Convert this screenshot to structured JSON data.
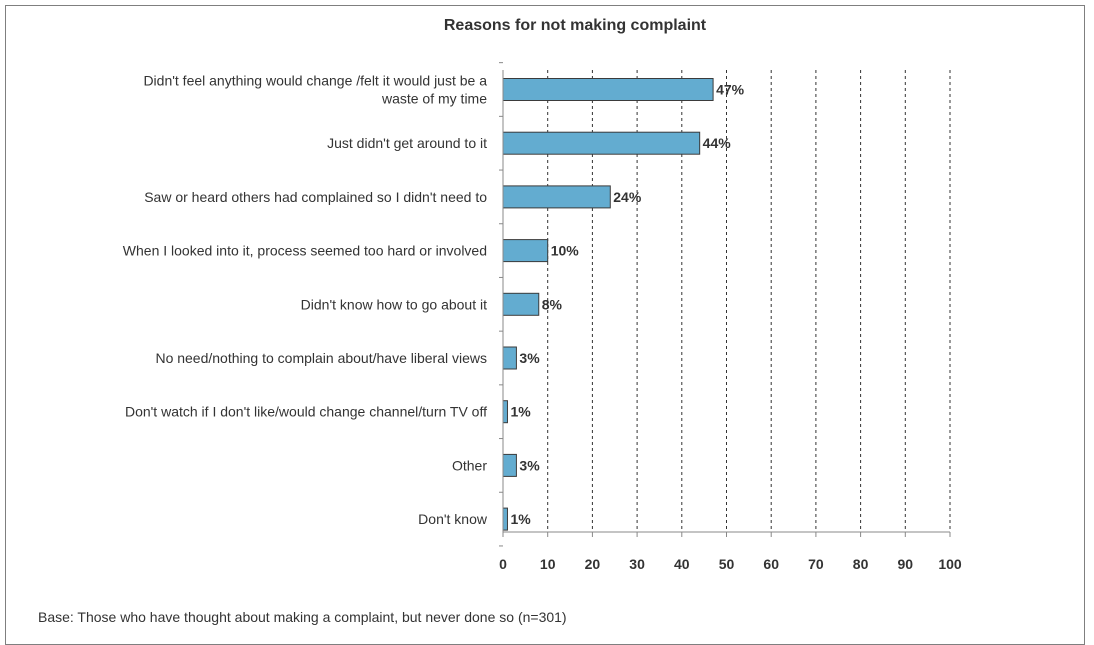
{
  "chart_data": {
    "type": "bar",
    "orientation": "horizontal",
    "title": "Reasons for not making complaint",
    "categories": [
      [
        "Didn't feel anything would change /felt it would just be a",
        "waste of my time"
      ],
      [
        "Just didn't get around to it"
      ],
      [
        "Saw or heard others had complained so I didn't need to"
      ],
      [
        "When I looked into it, process seemed too hard or involved"
      ],
      [
        "Didn't know how to go about it"
      ],
      [
        "No need/nothing to complain about/have liberal views"
      ],
      [
        "Don't watch if I don't like/would change channel/turn TV off"
      ],
      [
        "Other"
      ],
      [
        "Don't know"
      ]
    ],
    "values": [
      47,
      44,
      24,
      10,
      8,
      3,
      1,
      3,
      1
    ],
    "value_labels": [
      "47%",
      "44%",
      "24%",
      "10%",
      "8%",
      "3%",
      "1%",
      "3%",
      "1%"
    ],
    "xlim": [
      0,
      100
    ],
    "xticks": [
      0,
      10,
      20,
      30,
      40,
      50,
      60,
      70,
      80,
      90,
      100
    ],
    "xlabel": "",
    "ylabel": "",
    "grid": "vertical dashed",
    "bar_color": "#63acd0",
    "bar_border_color": "#3b3b3b"
  },
  "footnote": "Base: Those who have thought about making a complaint, but never done so (n=301)"
}
